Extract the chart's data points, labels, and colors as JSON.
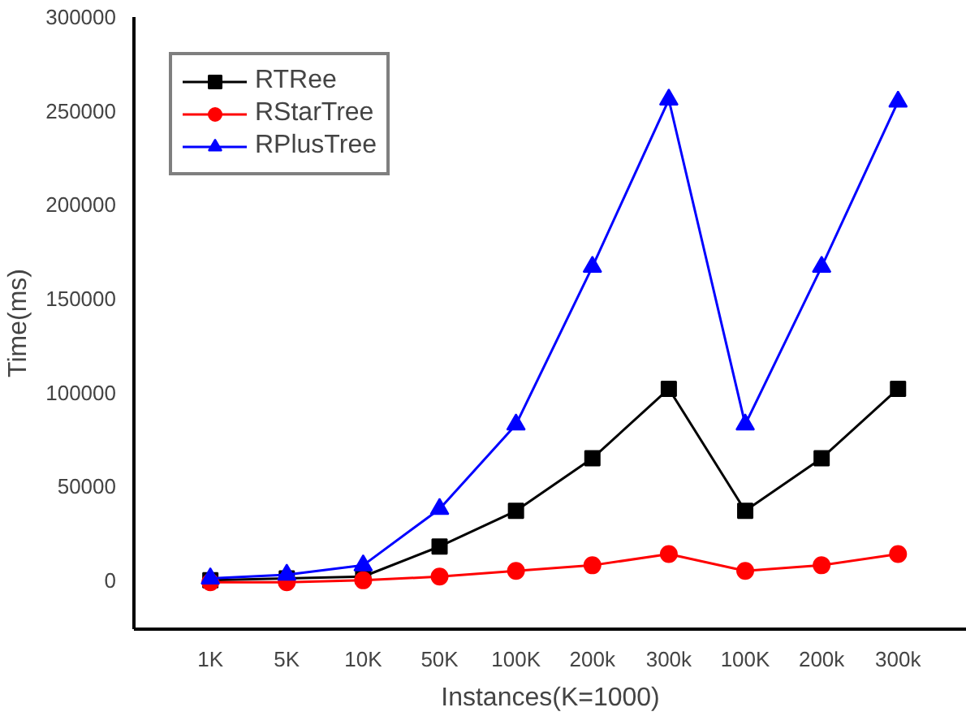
{
  "chart_data": {
    "type": "line",
    "xlabel": "Instances(K=1000)",
    "ylabel": "Time(ms)",
    "categories": [
      "1K",
      "5K",
      "10K",
      "50K",
      "100K",
      "200k",
      "300k",
      "100K",
      "200k",
      "300k"
    ],
    "series": [
      {
        "name": "RTRee",
        "color": "#000000",
        "marker": "square",
        "values": [
          0,
          1000,
          2000,
          18000,
          37000,
          65000,
          102000,
          37000,
          65000,
          102000
        ]
      },
      {
        "name": "RStarTree",
        "color": "#ff0000",
        "marker": "circle",
        "values": [
          -1000,
          -1000,
          0,
          2000,
          5000,
          8000,
          14000,
          5000,
          8000,
          14000
        ]
      },
      {
        "name": "RPlusTree",
        "color": "#0000ff",
        "marker": "triangle",
        "values": [
          1000,
          3000,
          8000,
          38000,
          83000,
          167000,
          256000,
          83000,
          167000,
          255000
        ]
      }
    ],
    "ylim": [
      -26000,
      300000
    ],
    "yticks": [
      0,
      50000,
      100000,
      150000,
      200000,
      250000,
      300000
    ],
    "grid": false,
    "legend": "top left",
    "line_style": "solid"
  }
}
